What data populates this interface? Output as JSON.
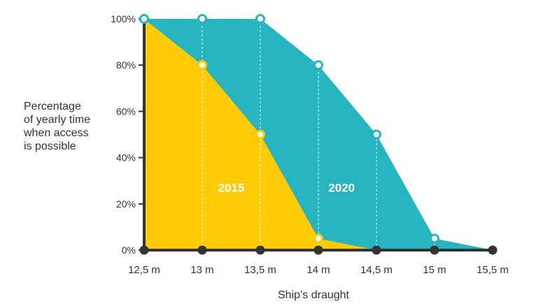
{
  "chart_data": {
    "type": "area",
    "x_unit": "m",
    "categories": [
      "12,5 m",
      "13 m",
      "13,5 m",
      "14 m",
      "14,5 m",
      "15 m",
      "15,5 m"
    ],
    "x": [
      12.5,
      13,
      13.5,
      14,
      14.5,
      15,
      15.5
    ],
    "ylabel_lines": [
      "Percentage",
      "of yearly time",
      "when access",
      "is possible"
    ],
    "xlabel": "Ship’s draught",
    "ylim": [
      0,
      100
    ],
    "yticks": [
      0,
      20,
      40,
      60,
      80,
      100
    ],
    "ytick_labels": [
      "0%",
      "20%",
      "40%",
      "60%",
      "80%",
      "100%"
    ],
    "grid": false,
    "series": [
      {
        "name": "2020",
        "values": [
          100,
          100,
          100,
          80,
          50,
          5,
          0
        ]
      },
      {
        "name": "2015",
        "values": [
          100,
          80,
          50,
          5,
          0,
          0,
          0
        ]
      }
    ],
    "colors": {
      "2020": "#26b5bf",
      "2015": "#ffcb05",
      "axis": "#333333",
      "marker_fill": "#ffffff"
    }
  }
}
